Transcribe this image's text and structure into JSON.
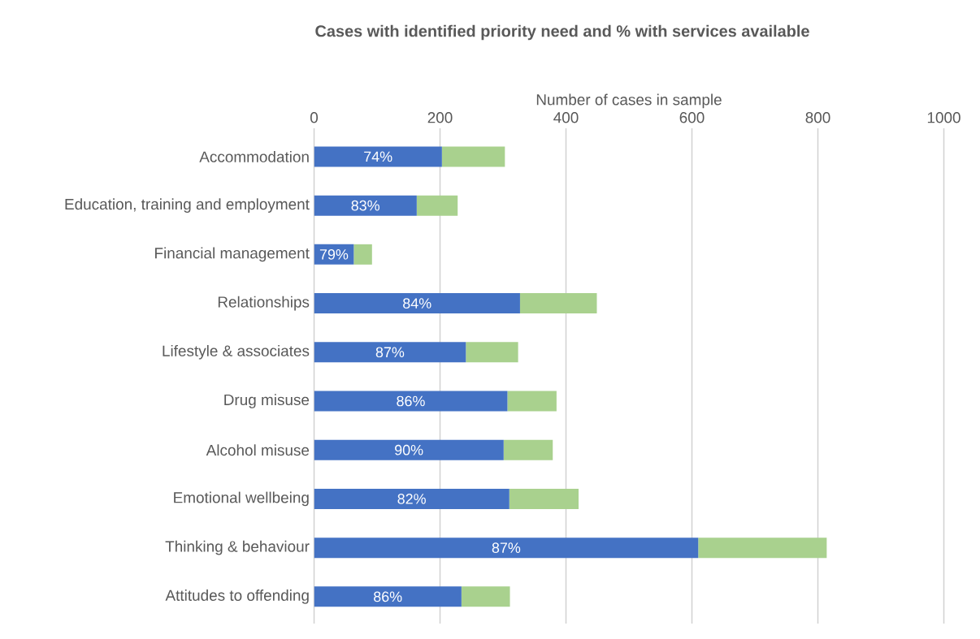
{
  "chart_data": {
    "type": "bar",
    "orientation": "horizontal",
    "stacked": true,
    "title": "Cases with identified priority need and % with services available",
    "xlabel": "Number of cases in sample",
    "categories": [
      "Accommodation",
      "Education, training and employment",
      "Financial management",
      "Relationships",
      "Lifestyle & associates",
      "Drug misuse",
      "Alcohol misuse",
      "Emotional wellbeing",
      "Thinking & behaviour",
      "Attitudes to offending"
    ],
    "series": [
      {
        "color": "#4472c4",
        "values": [
          203,
          163,
          63,
          327,
          241,
          307,
          301,
          310,
          610,
          234
        ]
      },
      {
        "color": "#a9d18e",
        "values": [
          100,
          65,
          29,
          122,
          83,
          78,
          78,
          110,
          204,
          77
        ]
      }
    ],
    "annotations": [
      "74%",
      "83%",
      "79%",
      "84%",
      "87%",
      "86%",
      "90%",
      "82%",
      "87%",
      "86%"
    ],
    "xlim": [
      0,
      1000
    ],
    "xticks": [
      0,
      200,
      400,
      600,
      800,
      1000
    ],
    "grid": "x"
  }
}
